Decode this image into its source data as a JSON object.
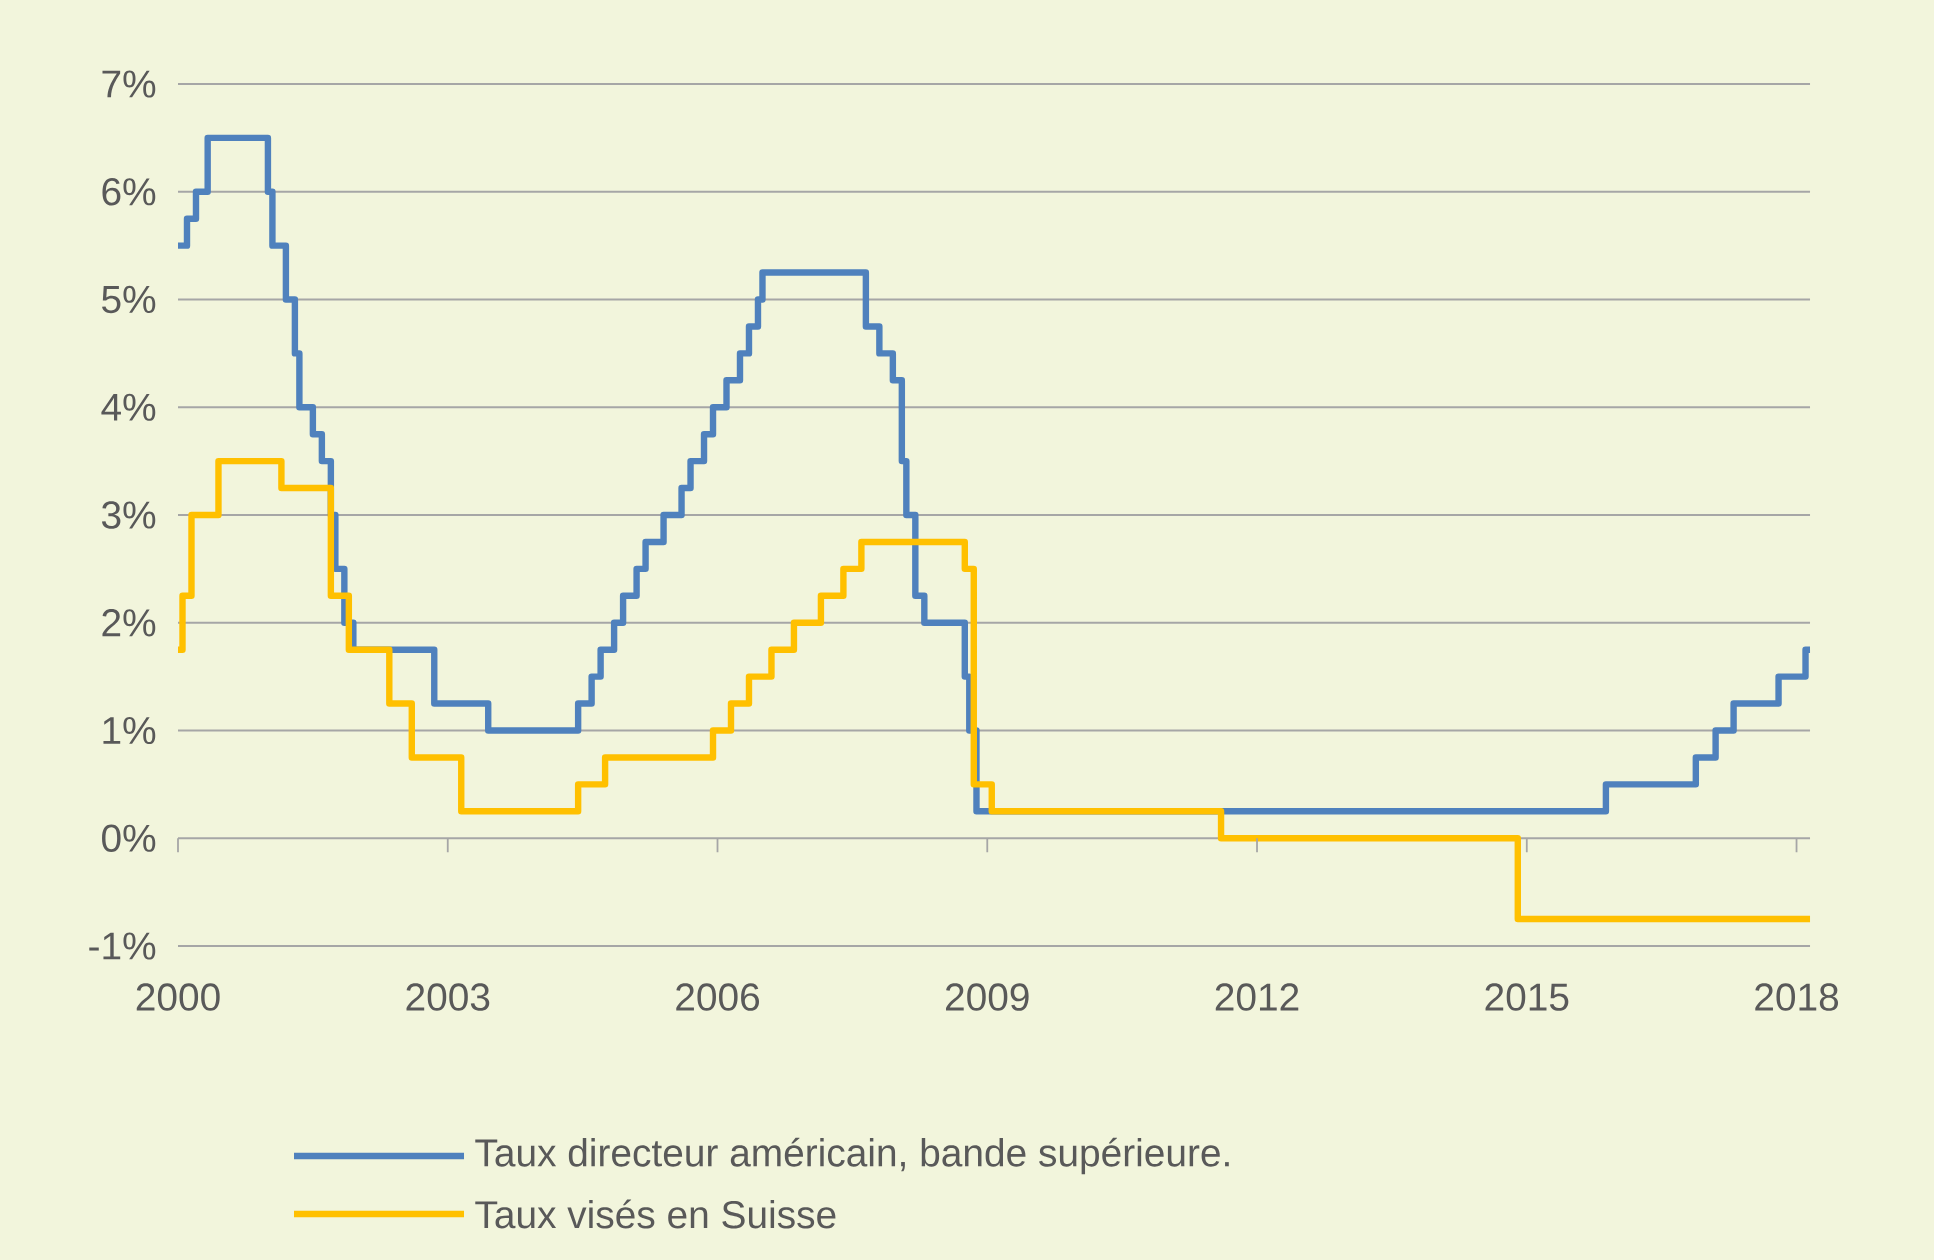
{
  "chart_data": {
    "type": "step",
    "xlim": [
      2000,
      2018.15
    ],
    "xticks": [
      2000,
      2003,
      2006,
      2009,
      2012,
      2015,
      2018
    ],
    "ylim": [
      -1,
      7
    ],
    "yticks": [
      {
        "value": -1,
        "label": "-1%"
      },
      {
        "value": 0,
        "label": "0%"
      },
      {
        "value": 1,
        "label": "1%"
      },
      {
        "value": 2,
        "label": "2%"
      },
      {
        "value": 3,
        "label": "3%"
      },
      {
        "value": 4,
        "label": "4%"
      },
      {
        "value": 5,
        "label": "5%"
      },
      {
        "value": 6,
        "label": "6%"
      },
      {
        "value": 7,
        "label": "7%"
      }
    ],
    "grid": "y",
    "legend": "bottom",
    "marker": "none",
    "line_style": "solid",
    "series": [
      {
        "name": "Taux directeur américain, bande supérieure.",
        "color": "#4f81bd",
        "x": [
          2000,
          2000.1,
          2000.2,
          2000.33,
          2001.0,
          2001.05,
          2001.2,
          2001.3,
          2001.35,
          2001.5,
          2001.6,
          2001.7,
          2001.75,
          2001.85,
          2001.95,
          2002.85,
          2003.45,
          2004.45,
          2004.6,
          2004.7,
          2004.85,
          2004.95,
          2005.1,
          2005.2,
          2005.4,
          2005.6,
          2005.7,
          2005.85,
          2005.95,
          2006.1,
          2006.25,
          2006.35,
          2006.45,
          2006.5,
          2007.65,
          2007.8,
          2007.95,
          2008.05,
          2008.1,
          2008.2,
          2008.3,
          2008.75,
          2008.8,
          2008.88,
          2015.88,
          2016.88,
          2017.1,
          2017.3,
          2017.8,
          2018.1,
          2018.15
        ],
        "values": [
          5.5,
          5.75,
          6.0,
          6.5,
          6.0,
          5.5,
          5.0,
          4.5,
          4.0,
          3.75,
          3.5,
          3.0,
          2.5,
          2.0,
          1.75,
          1.25,
          1.0,
          1.25,
          1.5,
          1.75,
          2.0,
          2.25,
          2.5,
          2.75,
          3.0,
          3.25,
          3.5,
          3.75,
          4.0,
          4.25,
          4.5,
          4.75,
          5.0,
          5.25,
          4.75,
          4.5,
          4.25,
          3.5,
          3.0,
          2.25,
          2.0,
          1.5,
          1.0,
          0.25,
          0.5,
          0.75,
          1.0,
          1.25,
          1.5,
          1.75,
          1.75
        ]
      },
      {
        "name": "Taux visés en Suisse",
        "color": "#ffc000",
        "x": [
          2000,
          2000.05,
          2000.15,
          2000.45,
          2001.15,
          2001.7,
          2001.9,
          2002.35,
          2002.6,
          2003.15,
          2004.45,
          2004.75,
          2005.95,
          2006.15,
          2006.35,
          2006.6,
          2006.85,
          2007.15,
          2007.4,
          2007.6,
          2008.75,
          2008.85,
          2009.05,
          2011.6,
          2014.9,
          2018.15
        ],
        "values": [
          1.75,
          2.25,
          3.0,
          3.5,
          3.25,
          2.25,
          1.75,
          1.25,
          0.75,
          0.25,
          0.5,
          0.75,
          1.0,
          1.25,
          1.5,
          1.75,
          2.0,
          2.25,
          2.5,
          2.75,
          2.5,
          0.5,
          0.25,
          0.0,
          -0.75,
          -0.75
        ]
      }
    ]
  }
}
